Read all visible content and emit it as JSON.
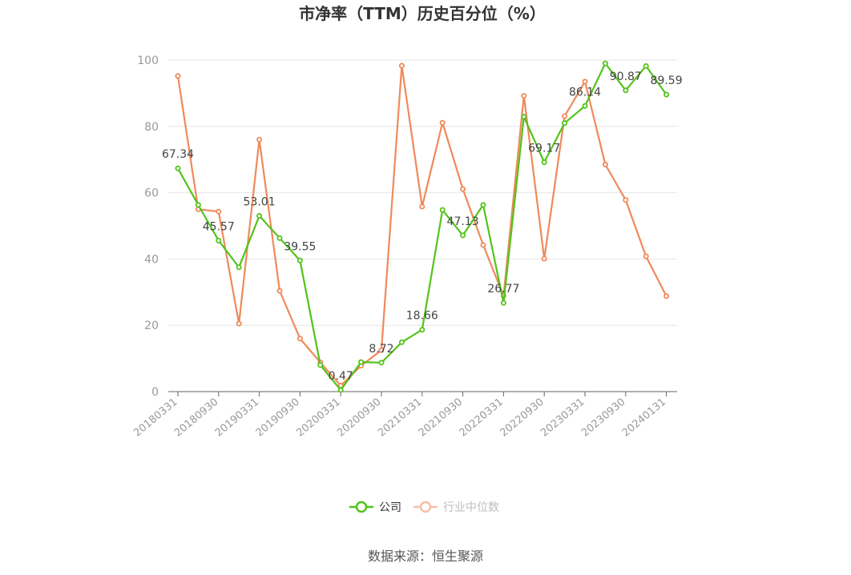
{
  "chart_data": {
    "type": "line",
    "title": "市净率（TTM）历史百分位（%）",
    "ylim": [
      0,
      100
    ],
    "yticks": [
      0,
      20,
      40,
      60,
      80,
      100
    ],
    "grid": true,
    "legend_placement": "bottom-center",
    "x": [
      "20180331",
      "20180630",
      "20180930",
      "20181231",
      "20190331",
      "20190630",
      "20190930",
      "20191231",
      "20200331",
      "20200630",
      "20200930",
      "20201231",
      "20210331",
      "20210630",
      "20210930",
      "20211231",
      "20220331",
      "20220630",
      "20220930",
      "20221231",
      "20230331",
      "20230630",
      "20230930",
      "20231231",
      "20240131"
    ],
    "xtick_labels": [
      "20180331",
      "20180930",
      "20190331",
      "20190930",
      "20200331",
      "20200930",
      "20210331",
      "20210930",
      "20220331",
      "20220930",
      "20230331",
      "20230930",
      "20240131"
    ],
    "series": [
      {
        "name": "公司",
        "color": "#52c41a",
        "values": [
          67.34,
          56.3,
          45.57,
          37.5,
          53.01,
          46.3,
          39.55,
          8.0,
          0.47,
          8.9,
          8.72,
          14.9,
          18.66,
          54.8,
          47.13,
          56.3,
          26.77,
          82.9,
          69.17,
          81.0,
          86.14,
          99.0,
          90.87,
          98.2,
          89.59
        ],
        "labels": [
          "67.34",
          null,
          "45.57",
          null,
          "53.01",
          null,
          "39.55",
          null,
          "0.47",
          null,
          "8.72",
          null,
          "18.66",
          null,
          "47.13",
          null,
          "26.77",
          null,
          "69.17",
          null,
          "86.14",
          null,
          "90.87",
          null,
          "89.59"
        ]
      },
      {
        "name": "行业中位数",
        "color": "#f0895a",
        "values": [
          95.2,
          55.0,
          54.3,
          20.5,
          76.0,
          30.4,
          16.0,
          8.8,
          1.8,
          7.8,
          12.5,
          98.3,
          55.8,
          81.1,
          61.1,
          44.2,
          28.9,
          89.2,
          40.1,
          83.1,
          93.5,
          68.5,
          57.8,
          40.8,
          28.8
        ]
      }
    ]
  },
  "source_text": "数据来源：恒生聚源"
}
